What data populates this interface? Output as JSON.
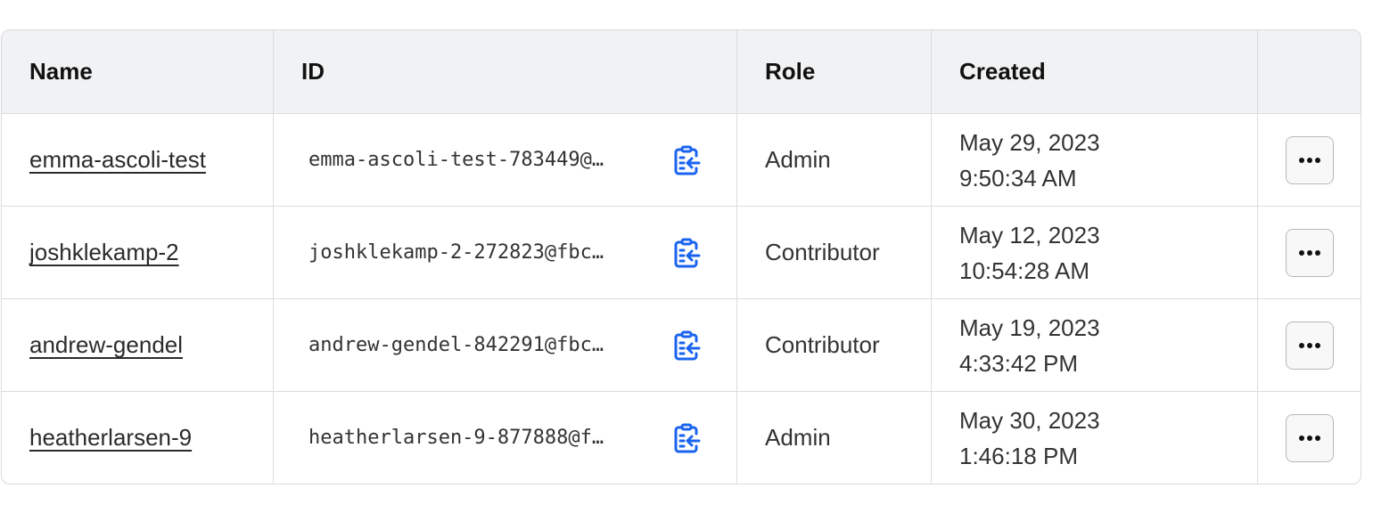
{
  "header": {
    "name": "Name",
    "id": "ID",
    "role": "Role",
    "created": "Created"
  },
  "accent_color": "#1a63f0",
  "rows": [
    {
      "name": "emma-ascoli-test",
      "id": "emma-ascoli-test-783449@…",
      "role": "Admin",
      "date": "May 29, 2023",
      "time": "9:50:34 AM"
    },
    {
      "name": "joshklekamp-2",
      "id": "joshklekamp-2-272823@fbc…",
      "role": "Contributor",
      "date": "May 12, 2023",
      "time": "10:54:28 AM"
    },
    {
      "name": "andrew-gendel",
      "id": "andrew-gendel-842291@fbc…",
      "role": "Contributor",
      "date": "May 19, 2023",
      "time": "4:33:42 PM"
    },
    {
      "name": "heatherlarsen-9",
      "id": "heatherlarsen-9-877888@f…",
      "role": "Admin",
      "date": "May 30, 2023",
      "time": "1:46:18 PM"
    }
  ]
}
